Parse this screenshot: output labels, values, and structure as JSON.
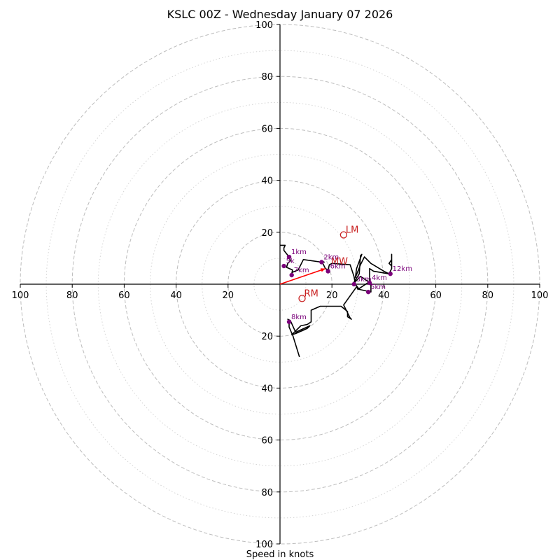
{
  "chart_data": {
    "type": "hodograph",
    "title": "KSLC 00Z - Wednesday January 07 2026",
    "xlabel": "Speed in knots",
    "range": [
      -100,
      100
    ],
    "ring_major_speeds": [
      20,
      40,
      60,
      80,
      100
    ],
    "ring_minor_speeds": [
      10,
      30,
      50,
      70,
      90
    ],
    "x_ticks": [
      {
        "value": -100,
        "label": "100"
      },
      {
        "value": -80,
        "label": "80"
      },
      {
        "value": -60,
        "label": "60"
      },
      {
        "value": -40,
        "label": "40"
      },
      {
        "value": -20,
        "label": "20"
      },
      {
        "value": 20,
        "label": "20"
      },
      {
        "value": 40,
        "label": "40"
      },
      {
        "value": 60,
        "label": "60"
      },
      {
        "value": 80,
        "label": "80"
      },
      {
        "value": 100,
        "label": "100"
      }
    ],
    "y_ticks": [
      {
        "value": 100,
        "label": "100"
      },
      {
        "value": 80,
        "label": "80"
      },
      {
        "value": 60,
        "label": "60"
      },
      {
        "value": 40,
        "label": "40"
      },
      {
        "value": 20,
        "label": "20"
      },
      {
        "value": -20,
        "label": "20"
      },
      {
        "value": -40,
        "label": "40"
      },
      {
        "value": -60,
        "label": "60"
      },
      {
        "value": -80,
        "label": "80"
      },
      {
        "value": -100,
        "label": "100"
      }
    ],
    "wind_trace": [
      [
        0,
        15
      ],
      [
        2,
        15
      ],
      [
        1.5,
        14
      ],
      [
        1.5,
        13
      ],
      [
        3.5,
        10.5
      ],
      [
        4,
        9
      ],
      [
        3,
        8
      ],
      [
        2.5,
        6.5
      ],
      [
        4.8,
        5.5
      ],
      [
        4.5,
        3.5
      ],
      [
        4.6,
        4.5
      ],
      [
        7,
        5.5
      ],
      [
        9,
        9.5
      ],
      [
        16,
        8.5
      ],
      [
        17,
        8.5
      ],
      [
        16,
        9
      ],
      [
        17.5,
        6
      ],
      [
        18.5,
        5.5
      ],
      [
        19,
        7.5
      ],
      [
        20,
        8
      ],
      [
        27,
        7.5
      ],
      [
        28.5,
        3
      ],
      [
        29,
        0
      ],
      [
        30.5,
        -2
      ],
      [
        35,
        -3
      ],
      [
        35,
        0
      ],
      [
        34,
        1
      ],
      [
        31,
        3
      ],
      [
        28,
        0
      ],
      [
        30.5,
        4
      ],
      [
        31,
        11
      ],
      [
        31.5,
        11.5
      ],
      [
        29.5,
        6
      ],
      [
        29,
        2.5
      ],
      [
        31,
        7.5
      ],
      [
        32.5,
        10.5
      ],
      [
        35,
        8
      ],
      [
        40,
        5
      ],
      [
        42,
        4
      ],
      [
        43,
        6
      ],
      [
        43,
        11.5
      ],
      [
        43,
        7
      ],
      [
        42,
        8
      ],
      [
        43,
        9.5
      ],
      [
        43,
        6
      ],
      [
        42,
        4
      ],
      [
        36,
        5
      ],
      [
        34.5,
        6
      ],
      [
        34.5,
        1
      ],
      [
        31.5,
        -1
      ],
      [
        30,
        -2
      ],
      [
        29.5,
        -1
      ],
      [
        24.5,
        -8
      ],
      [
        27,
        -13
      ],
      [
        27.5,
        -13.5
      ],
      [
        26,
        -12.5
      ],
      [
        26,
        -10.5
      ],
      [
        23.5,
        -8.5
      ],
      [
        15.5,
        -8.5
      ],
      [
        12,
        -10
      ],
      [
        12,
        -14.5
      ],
      [
        10.5,
        -15.5
      ],
      [
        8,
        -16
      ],
      [
        4.5,
        -19.5
      ],
      [
        6,
        -19
      ],
      [
        10.5,
        -17
      ],
      [
        11.5,
        -16
      ],
      [
        6,
        -18.5
      ],
      [
        4,
        -14
      ],
      [
        3,
        -13.5
      ],
      [
        3.5,
        -14
      ],
      [
        3.5,
        -16.5
      ],
      [
        5,
        -20
      ],
      [
        7.5,
        -28
      ]
    ],
    "height_markers": [
      {
        "label": "1km",
        "u": 3.5,
        "v": 10.5
      },
      {
        "label": "5k",
        "u": 1.5,
        "v": 7
      },
      {
        "label": "2km",
        "u": 16,
        "v": 8.5
      },
      {
        "label": "6km",
        "u": 18.5,
        "v": 5
      },
      {
        "label": "7km",
        "u": 4.5,
        "v": 3.5
      },
      {
        "label": "3km",
        "u": 28.5,
        "v": 0
      },
      {
        "label": "4km",
        "u": 34.5,
        "v": 0.5
      },
      {
        "label": "5km",
        "u": 34,
        "v": -3
      },
      {
        "label": "12km",
        "u": 42.5,
        "v": 4
      },
      {
        "label": "8km",
        "u": 3.5,
        "v": -14.5
      }
    ],
    "mean_wind_vector": {
      "label": "MW",
      "u": 17.5,
      "v": 6
    },
    "storm_motions": [
      {
        "label": "LM",
        "u": 24.5,
        "v": 19
      },
      {
        "label": "RM",
        "u": 8.5,
        "v": -5.5
      }
    ],
    "colors": {
      "trace": "#000000",
      "marker": "#7a007a",
      "vector": "#ff0000",
      "motion": "#c81e1e",
      "ring": "#bdbdbd"
    }
  }
}
